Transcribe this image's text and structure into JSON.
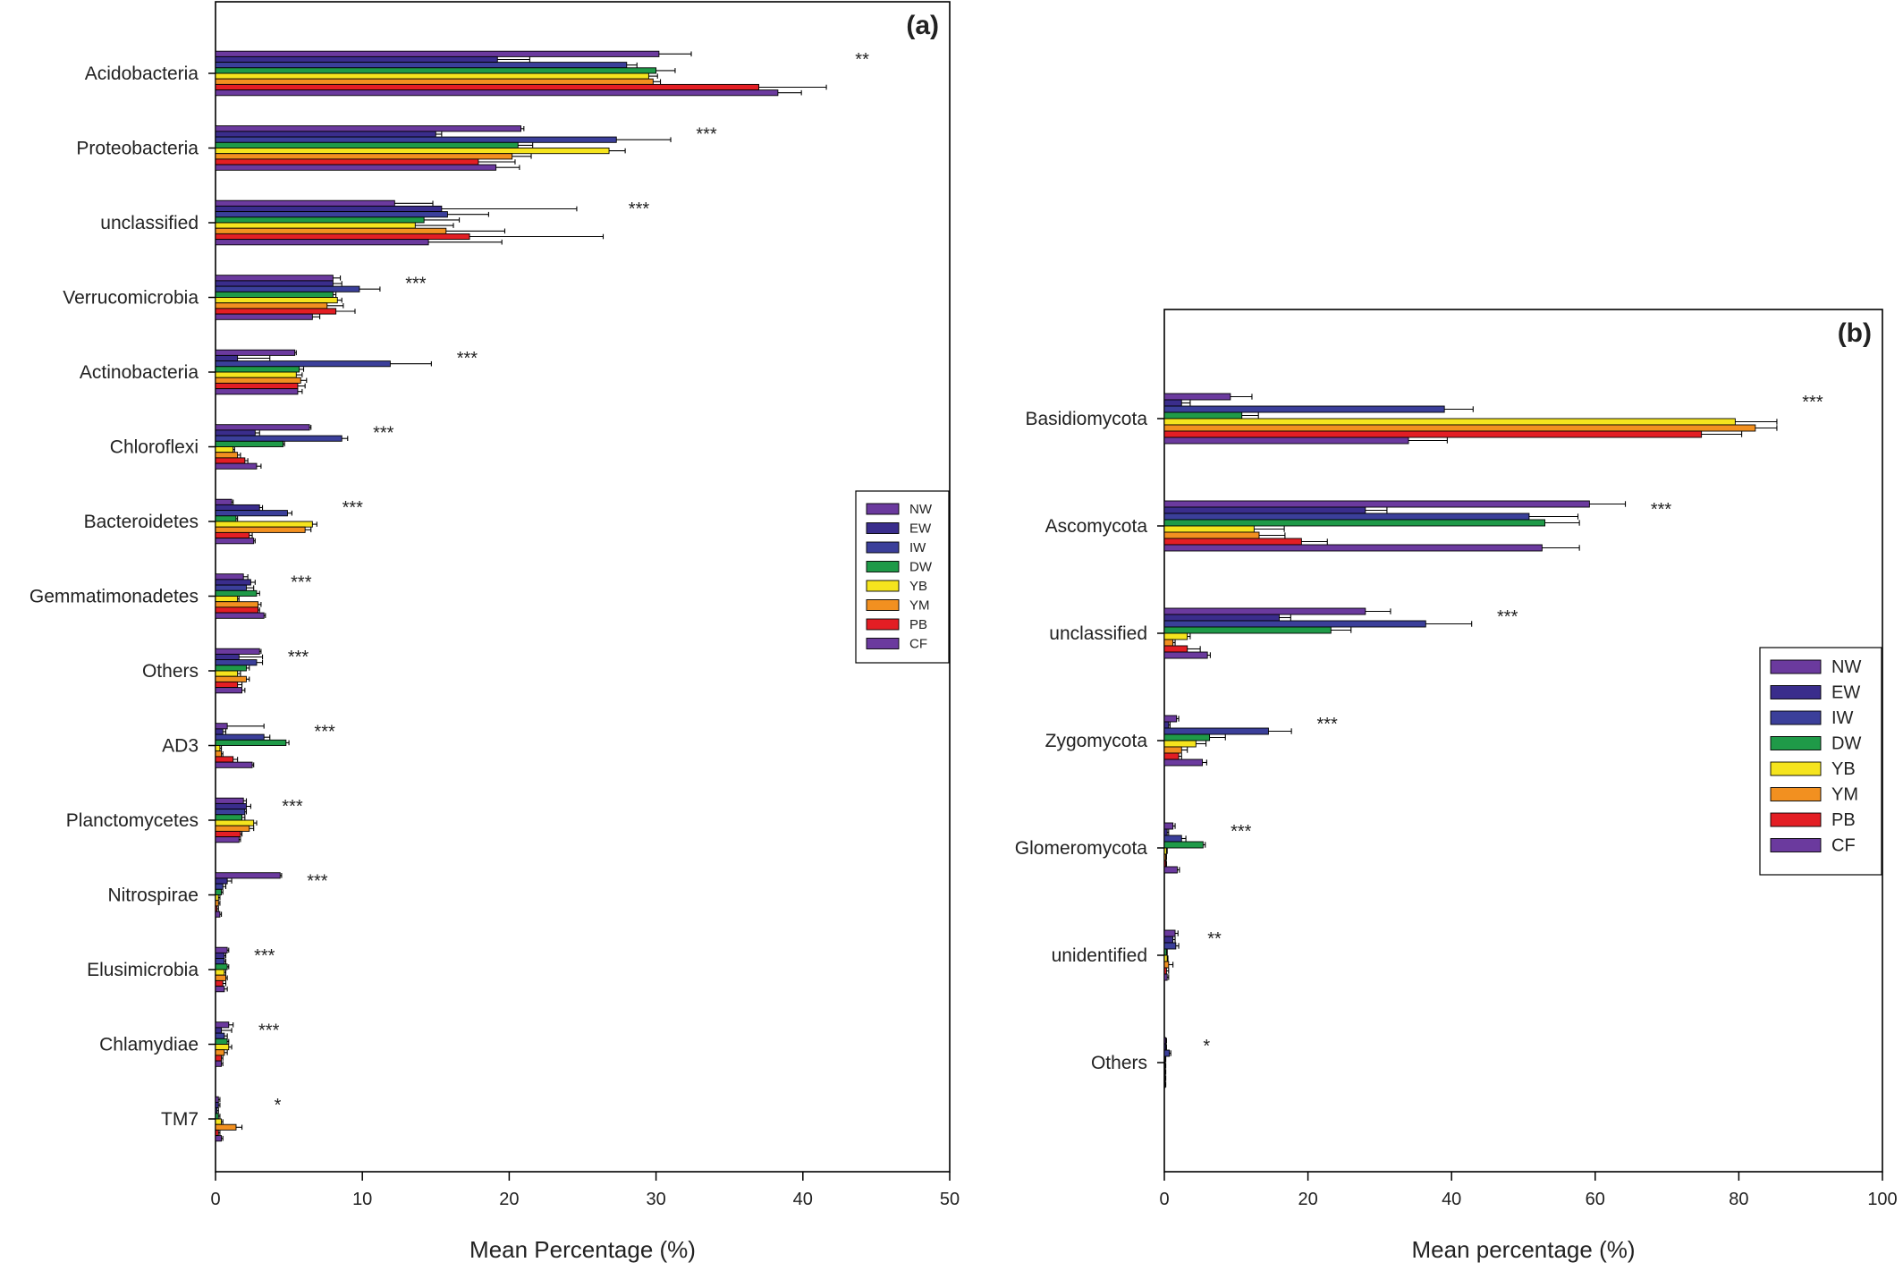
{
  "colors": {
    "NW": "#6b3a9e",
    "EW": "#3a2d8c",
    "IW": "#3b3f9a",
    "DW": "#1f9a48",
    "YB": "#f5e41e",
    "YM": "#f29020",
    "PB": "#e31e24",
    "CF": "#6b3a9e"
  },
  "chart_data": [
    {
      "type": "bar",
      "orientation": "horizontal",
      "panel_label": "(a)",
      "xlabel": "Mean Percentage (%)",
      "ylabel": "",
      "xlim": [
        0,
        50
      ],
      "xticks": [
        "0",
        "10",
        "20",
        "30",
        "40",
        "50"
      ],
      "legend_position": "right",
      "categories": [
        "Acidobacteria",
        "Proteobacteria",
        "unclassified",
        "Verrucomicrobia",
        "Actinobacteria",
        "Chloroflexi",
        "Bacteroidetes",
        "Gemmatimonadetes",
        "Others",
        "AD3",
        "Planctomycetes",
        "Nitrospirae",
        "Elusimicrobia",
        "Chlamydiae",
        "TM7"
      ],
      "significance": [
        "**",
        "***",
        "***",
        "***",
        "***",
        "***",
        "***",
        "***",
        "***",
        "***",
        "***",
        "***",
        "***",
        "***",
        "*"
      ],
      "series": [
        {
          "name": "NW",
          "values": [
            30.2,
            20.8,
            12.2,
            8.0,
            5.4,
            6.4,
            1.1,
            1.9,
            3.0,
            0.8,
            1.9,
            4.4,
            0.8,
            0.9,
            0.2
          ],
          "errors": [
            2.2,
            0.2,
            2.6,
            0.5,
            0.1,
            0.1,
            0.1,
            0.3,
            0.1,
            2.5,
            0.2,
            0.1,
            0.1,
            0.3,
            0.1
          ]
        },
        {
          "name": "EW",
          "values": [
            19.2,
            15.0,
            15.4,
            8.0,
            1.5,
            2.7,
            3.0,
            2.4,
            1.6,
            0.5,
            2.1,
            0.8,
            0.6,
            0.4,
            0.2
          ],
          "errors": [
            2.2,
            0.4,
            9.2,
            0.6,
            2.2,
            0.3,
            0.2,
            0.3,
            1.6,
            0.2,
            0.3,
            0.3,
            0.1,
            0.7,
            0.1
          ]
        },
        {
          "name": "IW",
          "values": [
            28.0,
            27.3,
            15.8,
            9.8,
            11.9,
            8.6,
            4.9,
            2.1,
            2.8,
            3.3,
            2.0,
            0.5,
            0.6,
            0.6,
            0.1
          ],
          "errors": [
            0.7,
            3.7,
            2.8,
            1.4,
            2.8,
            0.4,
            0.3,
            0.5,
            0.4,
            0.4,
            0.1,
            0.2,
            0.1,
            0.2,
            0.1
          ]
        },
        {
          "name": "DW",
          "values": [
            30.0,
            20.6,
            14.2,
            8.0,
            5.7,
            4.6,
            1.4,
            2.8,
            2.1,
            4.8,
            1.8,
            0.4,
            0.8,
            0.8,
            0.2
          ],
          "errors": [
            1.3,
            1.0,
            2.4,
            0.2,
            0.3,
            0.1,
            0.1,
            0.2,
            0.2,
            0.2,
            0.2,
            0.1,
            0.1,
            0.1,
            0.1
          ]
        },
        {
          "name": "YB",
          "values": [
            29.5,
            26.8,
            13.6,
            8.3,
            5.5,
            1.2,
            6.6,
            1.5,
            1.5,
            0.3,
            2.6,
            0.2,
            0.6,
            0.9,
            0.4
          ],
          "errors": [
            0.6,
            1.1,
            2.6,
            0.3,
            0.4,
            0.1,
            0.3,
            0.1,
            0.2,
            0.1,
            0.2,
            0.1,
            0.1,
            0.2,
            0.1
          ]
        },
        {
          "name": "YM",
          "values": [
            29.8,
            20.2,
            15.7,
            7.6,
            5.8,
            1.5,
            6.1,
            2.9,
            2.1,
            0.4,
            2.3,
            0.2,
            0.7,
            0.6,
            1.4
          ],
          "errors": [
            0.5,
            1.3,
            4.0,
            1.1,
            0.4,
            0.2,
            0.4,
            0.2,
            0.2,
            0.1,
            0.3,
            0.1,
            0.1,
            0.2,
            0.4
          ]
        },
        {
          "name": "PB",
          "values": [
            37.0,
            17.9,
            17.3,
            8.2,
            5.6,
            2.0,
            2.3,
            2.9,
            1.5,
            1.2,
            1.7,
            0.1,
            0.5,
            0.4,
            0.2
          ],
          "errors": [
            4.6,
            2.5,
            9.1,
            1.3,
            0.5,
            0.2,
            0.2,
            0.1,
            0.3,
            0.3,
            0.1,
            0.1,
            0.2,
            0.1,
            0.1
          ]
        },
        {
          "name": "CF",
          "values": [
            38.3,
            19.1,
            14.5,
            6.6,
            5.6,
            2.8,
            2.6,
            3.3,
            1.8,
            2.5,
            1.6,
            0.3,
            0.6,
            0.4,
            0.4
          ],
          "errors": [
            1.6,
            1.6,
            5.0,
            0.5,
            0.3,
            0.3,
            0.1,
            0.1,
            0.2,
            0.1,
            0.1,
            0.1,
            0.2,
            0.1,
            0.1
          ]
        }
      ]
    },
    {
      "type": "bar",
      "orientation": "horizontal",
      "panel_label": "(b)",
      "xlabel": "Mean percentage (%)",
      "ylabel": "",
      "xlim": [
        0,
        100
      ],
      "xticks": [
        "0",
        "20",
        "40",
        "60",
        "80",
        "100"
      ],
      "legend_position": "right",
      "categories": [
        "Basidiomycota",
        "Ascomycota",
        "unclassified",
        "Zygomycota",
        "Glomeromycota",
        "unidentified",
        "Others"
      ],
      "significance": [
        "***",
        "***",
        "***",
        "***",
        "***",
        "**",
        "*"
      ],
      "series": [
        {
          "name": "NW",
          "values": [
            9.2,
            59.2,
            28.0,
            1.7,
            1.2,
            1.5,
            0.2
          ],
          "errors": [
            3.0,
            5.0,
            3.5,
            0.3,
            0.3,
            0.4,
            0.1
          ]
        },
        {
          "name": "EW",
          "values": [
            2.4,
            28.0,
            16.0,
            0.6,
            0.4,
            1.2,
            0.2
          ],
          "errors": [
            1.2,
            3.0,
            1.6,
            0.2,
            0.2,
            0.3,
            0.1
          ]
        },
        {
          "name": "IW",
          "values": [
            39.0,
            50.8,
            36.4,
            14.5,
            2.4,
            1.6,
            0.7
          ],
          "errors": [
            4.0,
            6.8,
            6.4,
            3.2,
            0.6,
            0.4,
            0.2
          ]
        },
        {
          "name": "DW",
          "values": [
            10.8,
            53.0,
            23.2,
            6.3,
            5.4,
            0.3,
            0.1
          ],
          "errors": [
            2.3,
            4.8,
            2.8,
            2.2,
            0.3,
            0.1,
            0.1
          ]
        },
        {
          "name": "YB",
          "values": [
            79.5,
            12.5,
            3.2,
            4.4,
            0.3,
            0.4,
            0.1
          ],
          "errors": [
            5.8,
            4.2,
            0.4,
            1.4,
            0.1,
            0.1,
            0.1
          ]
        },
        {
          "name": "YM",
          "values": [
            82.3,
            13.2,
            1.2,
            2.4,
            0.2,
            0.6,
            0.1
          ],
          "errors": [
            3.0,
            3.6,
            0.3,
            0.8,
            0.1,
            0.6,
            0.1
          ]
        },
        {
          "name": "PB",
          "values": [
            74.8,
            19.1,
            3.2,
            2.0,
            0.2,
            0.3,
            0.1
          ],
          "errors": [
            5.6,
            3.6,
            1.8,
            0.4,
            0.1,
            0.3,
            0.1
          ]
        },
        {
          "name": "CF",
          "values": [
            34.0,
            52.6,
            6.0,
            5.3,
            1.8,
            0.4,
            0.1
          ],
          "errors": [
            5.4,
            5.2,
            0.4,
            0.6,
            0.3,
            0.2,
            0.1
          ]
        }
      ]
    }
  ]
}
